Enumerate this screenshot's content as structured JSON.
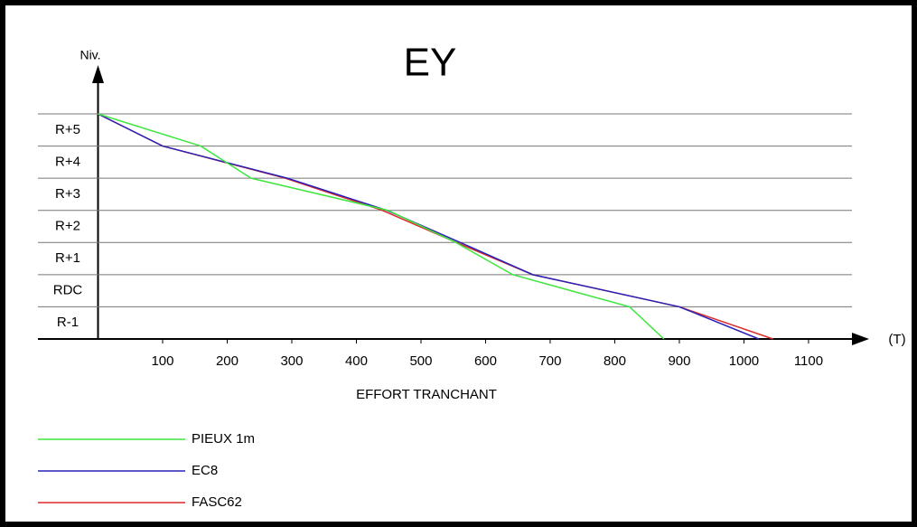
{
  "chart_data": {
    "type": "line",
    "title": "EY",
    "y_label": "Niv.",
    "x_label": "EFFORT TRANCHANT",
    "x_unit": "(T)",
    "levels": [
      "R-1",
      "RDC",
      "R+1",
      "R+2",
      "R+3",
      "R+4",
      "R+5"
    ],
    "xlim": [
      0,
      1170
    ],
    "xticks": [
      100,
      200,
      300,
      400,
      500,
      600,
      700,
      800,
      900,
      1000,
      1100
    ],
    "series": [
      {
        "name": "PIEUX 1m",
        "color": "#3ee63e",
        "values": [
          876,
          823,
          642,
          554,
          449,
          237,
          159,
          0
        ]
      },
      {
        "name": "EC8",
        "color": "#2a22b8",
        "values": [
          1023,
          900,
          673,
          561,
          447,
          293,
          100,
          0
        ]
      },
      {
        "name": "FASC62",
        "color": "#dd2a2a",
        "values": [
          1045,
          900,
          673,
          555,
          440,
          290,
          100,
          0
        ]
      }
    ]
  }
}
